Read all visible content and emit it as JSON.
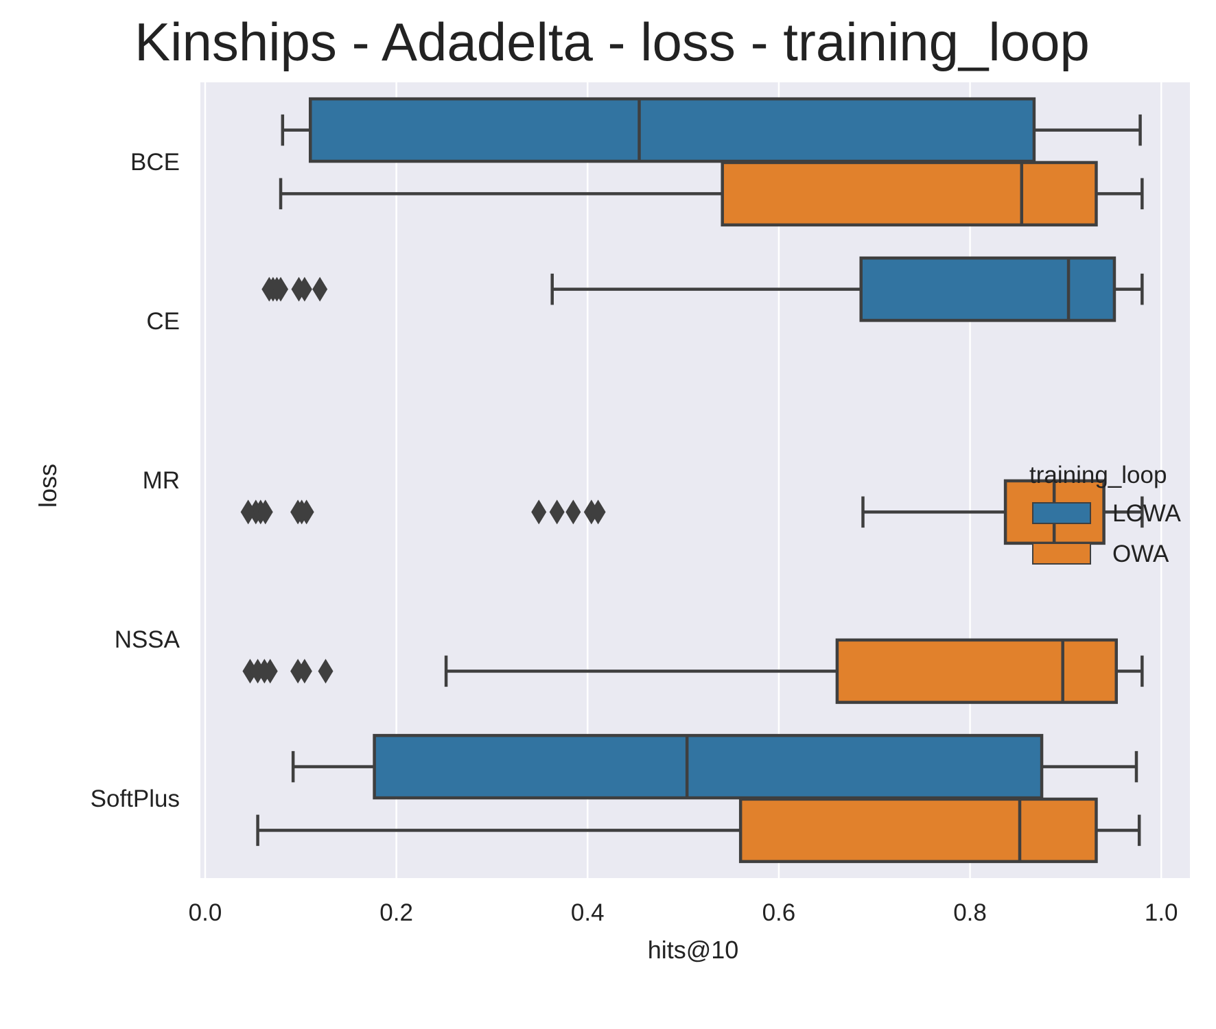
{
  "chart_data": {
    "type": "boxplot",
    "orientation": "horizontal",
    "title": "Kinships - Adadelta - loss - training_loop",
    "xlabel": "hits@10",
    "ylabel": "loss",
    "xlim": [
      -0.005,
      1.03
    ],
    "xticks": [
      0.0,
      0.2,
      0.4,
      0.6,
      0.8,
      1.0
    ],
    "xtick_labels": [
      "0.0",
      "0.2",
      "0.4",
      "0.6",
      "0.8",
      "1.0"
    ],
    "categories": [
      "BCE",
      "CE",
      "MR",
      "NSSA",
      "SoftPlus"
    ],
    "grid": true,
    "legend": {
      "title": "training_loop",
      "placement": "center-right",
      "entries": [
        {
          "name": "LCWA",
          "color": "#3274a1"
        },
        {
          "name": "OWA",
          "color": "#e1812c"
        }
      ]
    },
    "series": [
      {
        "name": "LCWA",
        "color": "#3274a1",
        "boxes": [
          {
            "category": "BCE",
            "whisker_low": 0.081,
            "q1": 0.11,
            "median": 0.454,
            "q3": 0.867,
            "whisker_high": 0.978,
            "outliers": []
          },
          {
            "category": "CE",
            "whisker_low": 0.363,
            "q1": 0.686,
            "median": 0.903,
            "q3": 0.951,
            "whisker_high": 0.98,
            "outliers": [
              0.067,
              0.071,
              0.075,
              0.079,
              0.098,
              0.104,
              0.12
            ]
          },
          null,
          null,
          {
            "category": "SoftPlus",
            "whisker_low": 0.092,
            "q1": 0.177,
            "median": 0.504,
            "q3": 0.875,
            "whisker_high": 0.974,
            "outliers": []
          }
        ]
      },
      {
        "name": "OWA",
        "color": "#e1812c",
        "boxes": [
          {
            "category": "BCE",
            "whisker_low": 0.079,
            "q1": 0.541,
            "median": 0.854,
            "q3": 0.932,
            "whisker_high": 0.98,
            "outliers": []
          },
          null,
          {
            "category": "MR",
            "whisker_low": 0.688,
            "q1": 0.837,
            "median": 0.888,
            "q3": 0.94,
            "whisker_high": 0.98,
            "outliers": [
              0.045,
              0.053,
              0.058,
              0.063,
              0.097,
              0.101,
              0.106,
              0.349,
              0.368,
              0.385,
              0.404,
              0.411
            ]
          },
          {
            "category": "NSSA",
            "whisker_low": 0.252,
            "q1": 0.661,
            "median": 0.897,
            "q3": 0.953,
            "whisker_high": 0.98,
            "outliers": [
              0.047,
              0.055,
              0.062,
              0.068,
              0.097,
              0.104,
              0.126
            ]
          },
          {
            "category": "SoftPlus",
            "whisker_low": 0.055,
            "q1": 0.56,
            "median": 0.852,
            "q3": 0.932,
            "whisker_high": 0.977,
            "outliers": []
          }
        ]
      }
    ]
  }
}
